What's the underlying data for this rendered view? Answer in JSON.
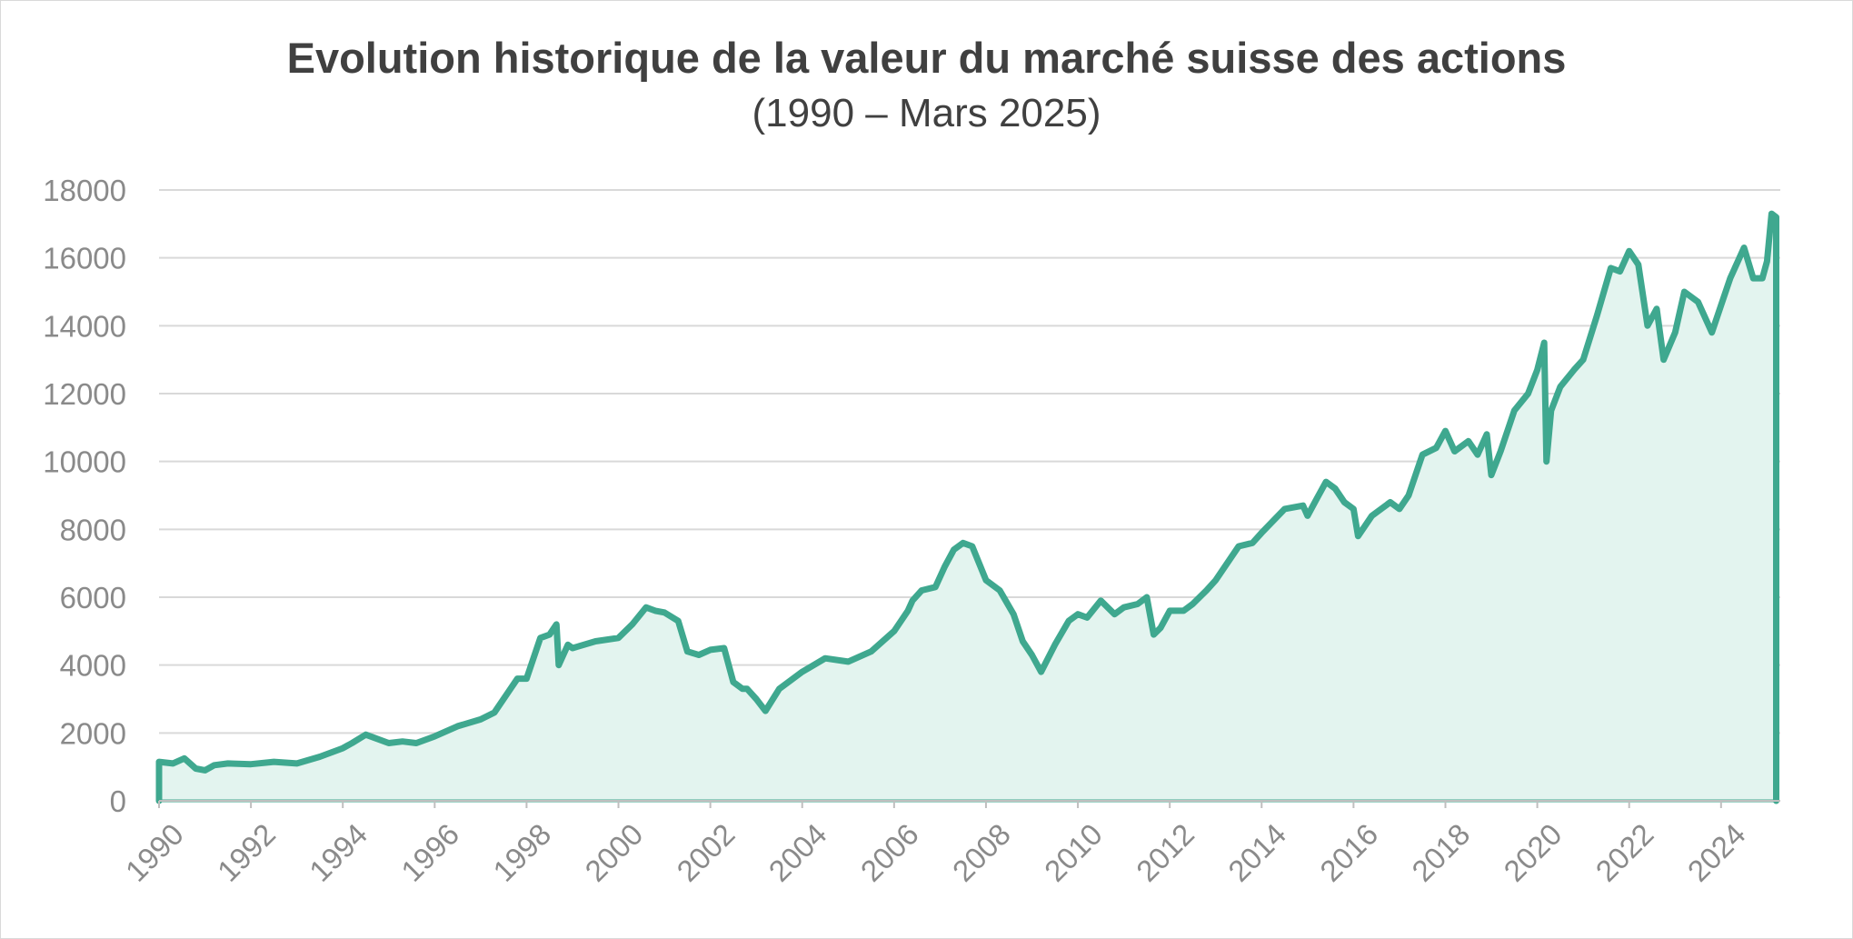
{
  "chart_data": {
    "type": "area",
    "title": "Evolution historique de la valeur du marché suisse des actions",
    "subtitle": "(1990 – Mars 2025)",
    "xlabel": "",
    "ylabel": "",
    "xlim": [
      1990,
      2025.25
    ],
    "ylim": [
      0,
      18000
    ],
    "y_ticks": [
      0,
      2000,
      4000,
      6000,
      8000,
      10000,
      12000,
      14000,
      16000,
      18000
    ],
    "x_ticks": [
      "1990",
      "1992",
      "1994",
      "1996",
      "1998",
      "2000",
      "2002",
      "2004",
      "2006",
      "2008",
      "2010",
      "2012",
      "2014",
      "2016",
      "2018",
      "2020",
      "2022",
      "2024"
    ],
    "grid": true,
    "legend": "none",
    "colors": {
      "line": "#3fa88f",
      "fill": "#e3f4ef"
    },
    "series": [
      {
        "x": [
          1990.0,
          1990.3,
          1990.55,
          1990.8,
          1991.0,
          1991.2,
          1991.5,
          1992.0,
          1992.5,
          1993.0,
          1993.5,
          1994.0,
          1994.2,
          1994.5,
          1995.0,
          1995.3,
          1995.6,
          1996.0,
          1996.5,
          1997.0,
          1997.3,
          1997.5,
          1997.8,
          1998.0,
          1998.3,
          1998.5,
          1998.65,
          1998.7,
          1998.9,
          1999.0,
          1999.5,
          2000.0,
          2000.3,
          2000.6,
          2000.8,
          2001.0,
          2001.3,
          2001.5,
          2001.75,
          2002.0,
          2002.3,
          2002.5,
          2002.7,
          2002.8,
          2003.0,
          2003.2,
          2003.5,
          2004.0,
          2004.5,
          2005.0,
          2005.5,
          2006.0,
          2006.3,
          2006.4,
          2006.6,
          2006.9,
          2007.1,
          2007.3,
          2007.5,
          2007.7,
          2008.0,
          2008.3,
          2008.6,
          2008.8,
          2009.0,
          2009.2,
          2009.5,
          2009.8,
          2010.0,
          2010.2,
          2010.5,
          2010.8,
          2011.0,
          2011.3,
          2011.5,
          2011.65,
          2011.8,
          2012.0,
          2012.3,
          2012.5,
          2012.8,
          2013.0,
          2013.3,
          2013.5,
          2013.8,
          2014.0,
          2014.5,
          2014.9,
          2015.0,
          2015.2,
          2015.4,
          2015.6,
          2015.8,
          2016.0,
          2016.1,
          2016.4,
          2016.8,
          2017.0,
          2017.2,
          2017.5,
          2017.8,
          2018.0,
          2018.2,
          2018.5,
          2018.7,
          2018.9,
          2019.0,
          2019.2,
          2019.5,
          2019.8,
          2020.0,
          2020.15,
          2020.2,
          2020.3,
          2020.5,
          2020.8,
          2021.0,
          2021.3,
          2021.6,
          2021.8,
          2022.0,
          2022.2,
          2022.4,
          2022.6,
          2022.75,
          2023.0,
          2023.2,
          2023.5,
          2023.8,
          2024.0,
          2024.2,
          2024.5,
          2024.7,
          2024.9,
          2025.0,
          2025.1,
          2025.2
        ],
        "values": [
          1150,
          1100,
          1250,
          950,
          900,
          1050,
          1100,
          1080,
          1150,
          1100,
          1300,
          1550,
          1700,
          1950,
          1700,
          1750,
          1700,
          1900,
          2200,
          2400,
          2600,
          3000,
          3600,
          3600,
          4800,
          4900,
          5200,
          4000,
          4600,
          4500,
          4700,
          4800,
          5200,
          5700,
          5600,
          5550,
          5300,
          4400,
          4300,
          4450,
          4500,
          3500,
          3300,
          3300,
          3000,
          2650,
          3300,
          3800,
          4200,
          4100,
          4400,
          5000,
          5600,
          5900,
          6200,
          6300,
          6900,
          7400,
          7600,
          7500,
          6500,
          6200,
          5500,
          4700,
          4300,
          3800,
          4600,
          5300,
          5500,
          5400,
          5900,
          5500,
          5700,
          5800,
          6000,
          4900,
          5100,
          5600,
          5600,
          5800,
          6200,
          6500,
          7100,
          7500,
          7600,
          7900,
          8600,
          8700,
          8400,
          8900,
          9400,
          9200,
          8800,
          8600,
          7800,
          8400,
          8800,
          8600,
          9000,
          10200,
          10400,
          10900,
          10300,
          10600,
          10200,
          10800,
          9600,
          10300,
          11500,
          12000,
          12700,
          13500,
          10000,
          11500,
          12200,
          12700,
          13000,
          14300,
          15700,
          15600,
          16200,
          15800,
          14000,
          14500,
          13000,
          13800,
          15000,
          14700,
          13800,
          14600,
          15400,
          16300,
          15400,
          15400,
          15900,
          17300,
          17200
        ]
      }
    ]
  }
}
